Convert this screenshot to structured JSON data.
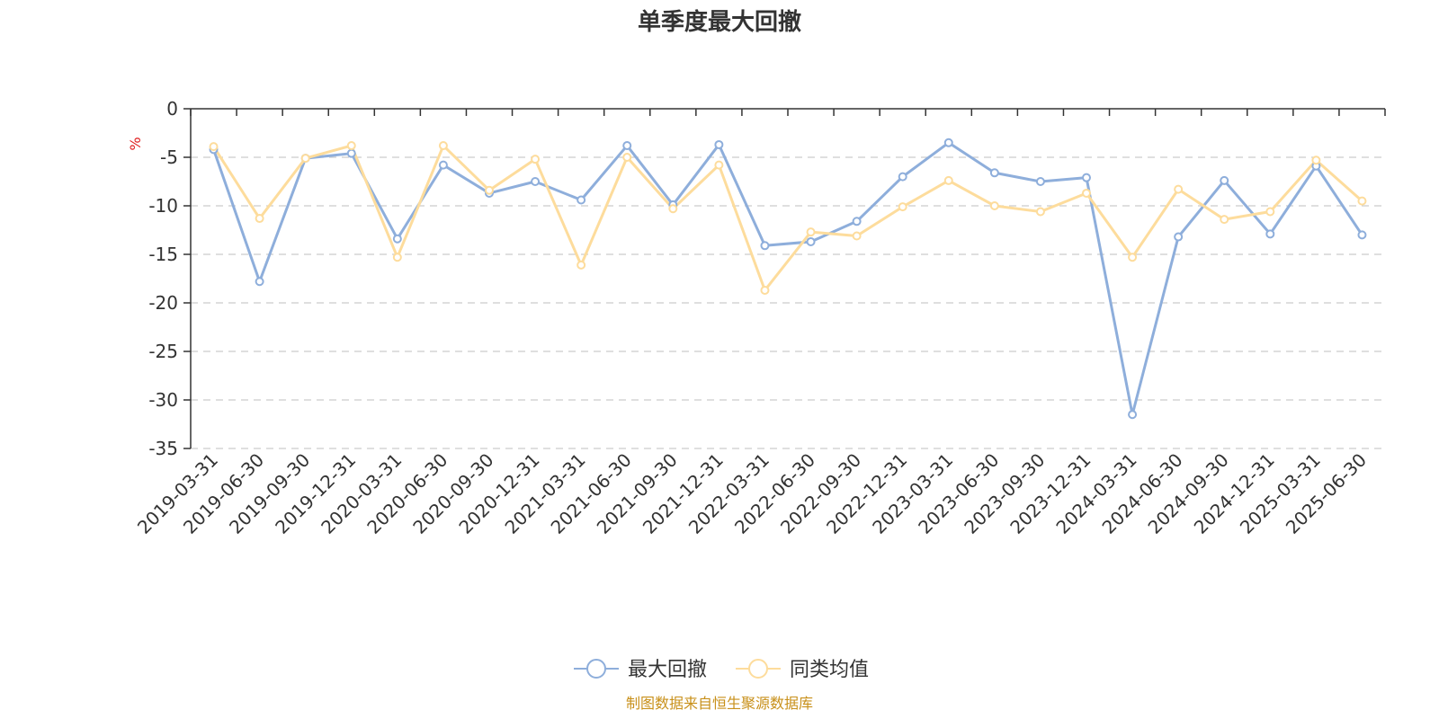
{
  "chart_data": {
    "type": "line",
    "title": "单季度最大回撤",
    "ylabel": "%",
    "ylim": [
      -35,
      0
    ],
    "yticks": [
      0,
      -5,
      -10,
      -15,
      -20,
      -25,
      -30,
      -35
    ],
    "grid": true,
    "legend_position": "bottom-center",
    "categories": [
      "2019-03-31",
      "2019-06-30",
      "2019-09-30",
      "2019-12-31",
      "2020-03-31",
      "2020-06-30",
      "2020-09-30",
      "2020-12-31",
      "2021-03-31",
      "2021-06-30",
      "2021-09-30",
      "2021-12-31",
      "2022-03-31",
      "2022-06-30",
      "2022-09-30",
      "2022-12-31",
      "2023-03-31",
      "2023-06-30",
      "2023-09-30",
      "2023-12-31",
      "2024-03-31",
      "2024-06-30",
      "2024-09-30",
      "2024-12-31",
      "2025-03-31",
      "2025-06-30"
    ],
    "series": [
      {
        "name": "最大回撤",
        "color": "#8eaedb",
        "values": [
          -4.2,
          -17.8,
          -5.1,
          -4.6,
          -13.4,
          -5.8,
          -8.7,
          -7.5,
          -9.4,
          -3.8,
          -9.9,
          -3.7,
          -14.1,
          -13.7,
          -11.6,
          -7.0,
          -3.5,
          -6.6,
          -7.5,
          -7.1,
          -31.5,
          -13.2,
          -7.4,
          -12.9,
          -5.9,
          -13.0
        ]
      },
      {
        "name": "同类均值",
        "color": "#fddc9c",
        "values": [
          -3.9,
          -11.3,
          -5.1,
          -3.8,
          -15.3,
          -3.8,
          -8.4,
          -5.2,
          -16.1,
          -5.0,
          -10.3,
          -5.8,
          -18.7,
          -12.7,
          -13.1,
          -10.1,
          -7.4,
          -10.0,
          -10.6,
          -8.7,
          -15.3,
          -8.3,
          -11.4,
          -10.6,
          -5.3,
          -9.5
        ]
      }
    ]
  },
  "source": "制图数据来自恒生聚源数据库"
}
